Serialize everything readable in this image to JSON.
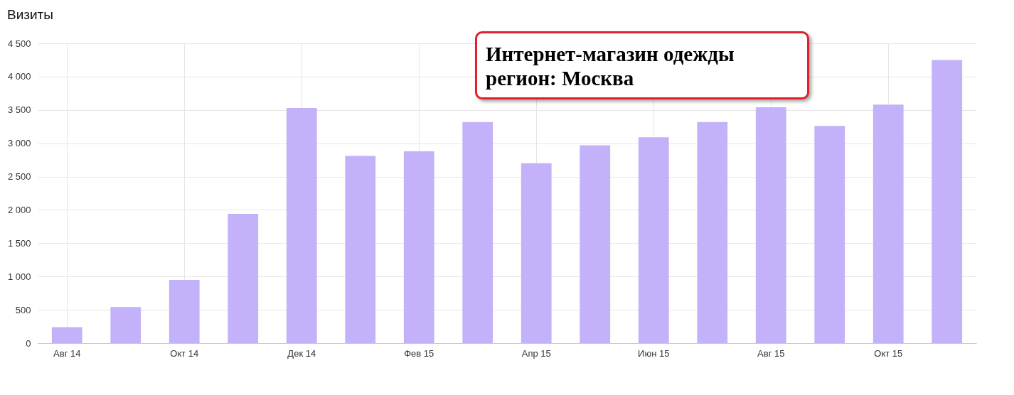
{
  "chart_data": {
    "type": "bar",
    "title": "Визиты",
    "categories": [
      "Авг 14",
      null,
      "Окт 14",
      null,
      "Дек 14",
      null,
      "Фев 15",
      null,
      "Апр 15",
      null,
      "Июн 15",
      null,
      "Авг 15",
      null,
      "Окт 15",
      null
    ],
    "values": [
      240,
      540,
      950,
      1940,
      3530,
      2810,
      2880,
      3320,
      2700,
      2970,
      3090,
      3320,
      3540,
      3260,
      3580,
      4250
    ],
    "color": "#c3b1f9",
    "ylim": [
      0,
      4500
    ],
    "yticks": [
      0,
      500,
      {
        "value": 1000,
        "label": "1 000"
      },
      {
        "value": 1500,
        "label": "1 500"
      },
      {
        "value": 2000,
        "label": "2 000"
      },
      {
        "value": 2500,
        "label": "2 500"
      },
      {
        "value": 3000,
        "label": "3 000"
      },
      {
        "value": 3500,
        "label": "3 500"
      },
      {
        "value": 4000,
        "label": "4 000"
      },
      {
        "value": 4500,
        "label": "4 500"
      }
    ],
    "grid": true,
    "annotations": [
      "Интернет-магазин одежды\nрегион: Москва"
    ]
  }
}
